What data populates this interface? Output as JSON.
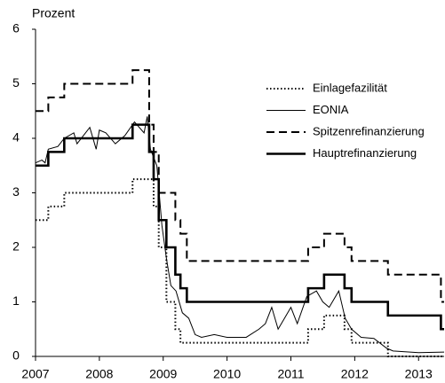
{
  "chart_data": {
    "type": "line",
    "y_label": "Prozent",
    "x": [
      2007.0,
      2007.2,
      2007.2,
      2007.45,
      2007.45,
      2008.52,
      2008.52,
      2008.78,
      2008.78,
      2008.85,
      2008.85,
      2008.93,
      2008.93,
      2009.05,
      2009.05,
      2009.19,
      2009.19,
      2009.27,
      2009.27,
      2009.37,
      2009.37,
      2011.27,
      2011.27,
      2011.52,
      2011.52,
      2011.84,
      2011.84,
      2011.95,
      2011.95,
      2012.52,
      2012.52,
      2013.35,
      2013.35,
      2013.4
    ],
    "series": [
      {
        "name": "Einlagefazilität",
        "color": "#000000",
        "style": "dotted",
        "values": [
          2.5,
          2.5,
          2.75,
          2.75,
          3.0,
          3.0,
          3.25,
          3.25,
          3.25,
          3.25,
          2.75,
          2.75,
          2.0,
          2.0,
          1.0,
          1.0,
          0.5,
          0.5,
          0.25,
          0.25,
          0.25,
          0.25,
          0.5,
          0.5,
          0.75,
          0.75,
          0.5,
          0.5,
          0.25,
          0.25,
          0.0,
          0.0,
          0.0,
          0.0
        ]
      },
      {
        "name": "EONIA",
        "color": "#000000",
        "style": "thin",
        "x": [
          2007.0,
          2007.1,
          2007.15,
          2007.2,
          2007.35,
          2007.45,
          2007.6,
          2007.65,
          2007.75,
          2007.85,
          2007.95,
          2008.0,
          2008.1,
          2008.25,
          2008.4,
          2008.55,
          2008.7,
          2008.75,
          2008.8,
          2008.9,
          2008.98,
          2009.05,
          2009.12,
          2009.2,
          2009.3,
          2009.4,
          2009.5,
          2009.6,
          2009.8,
          2010.0,
          2010.3,
          2010.5,
          2010.6,
          2010.7,
          2010.8,
          2010.9,
          2011.0,
          2011.1,
          2011.25,
          2011.4,
          2011.5,
          2011.6,
          2011.75,
          2011.85,
          2011.95,
          2012.1,
          2012.3,
          2012.5,
          2012.6,
          2013.0,
          2013.4
        ],
        "values": [
          3.55,
          3.6,
          3.55,
          3.8,
          3.85,
          4.0,
          4.1,
          3.9,
          4.05,
          4.2,
          3.8,
          4.15,
          4.1,
          3.9,
          4.05,
          4.3,
          4.1,
          4.4,
          3.8,
          3.5,
          2.4,
          1.8,
          1.3,
          1.2,
          0.8,
          0.7,
          0.4,
          0.35,
          0.4,
          0.35,
          0.35,
          0.5,
          0.6,
          0.9,
          0.5,
          0.7,
          0.9,
          0.6,
          1.1,
          1.2,
          1.0,
          0.9,
          1.2,
          0.7,
          0.5,
          0.35,
          0.33,
          0.15,
          0.1,
          0.07,
          0.08
        ]
      },
      {
        "name": "Spitzenrefinanzierung",
        "color": "#000000",
        "style": "dashed",
        "values": [
          4.5,
          4.5,
          4.75,
          4.75,
          5.0,
          5.0,
          5.25,
          5.25,
          4.25,
          4.25,
          3.75,
          3.75,
          3.0,
          3.0,
          3.0,
          3.0,
          2.5,
          2.5,
          2.25,
          2.25,
          1.75,
          1.75,
          2.0,
          2.0,
          2.25,
          2.25,
          2.0,
          2.0,
          1.75,
          1.75,
          1.5,
          1.5,
          1.0,
          1.0
        ]
      },
      {
        "name": "Hauptrefinanzierung",
        "color": "#000000",
        "style": "thick",
        "values": [
          3.5,
          3.5,
          3.75,
          3.75,
          4.0,
          4.0,
          4.25,
          4.25,
          3.75,
          3.75,
          3.25,
          3.25,
          2.5,
          2.5,
          2.0,
          2.0,
          1.5,
          1.5,
          1.25,
          1.25,
          1.0,
          1.0,
          1.25,
          1.25,
          1.5,
          1.5,
          1.25,
          1.25,
          1.0,
          1.0,
          0.75,
          0.75,
          0.5,
          0.5
        ]
      }
    ],
    "xlim": [
      2007,
      2013.4
    ],
    "xticks": [
      2007,
      2008,
      2009,
      2010,
      2011,
      2012,
      2013
    ],
    "ylim": [
      0,
      6
    ],
    "yticks": [
      0,
      1,
      2,
      3,
      4,
      5,
      6
    ],
    "grid": false,
    "legend": "upper right"
  }
}
